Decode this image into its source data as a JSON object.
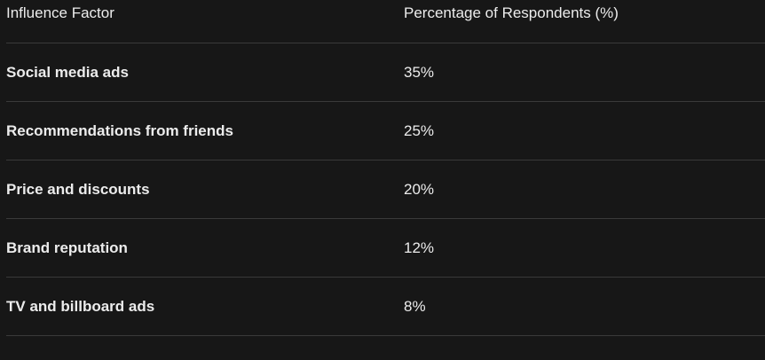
{
  "table": {
    "header": [
      "Influence Factor",
      "Percentage of Respondents (%)"
    ],
    "rows": [
      [
        "Social media ads",
        "35%"
      ],
      [
        "Recommendations from friends",
        "25%"
      ],
      [
        "Price and discounts",
        "20%"
      ],
      [
        "Brand reputation",
        "12%"
      ],
      [
        "TV and billboard ads",
        "8%"
      ]
    ]
  }
}
